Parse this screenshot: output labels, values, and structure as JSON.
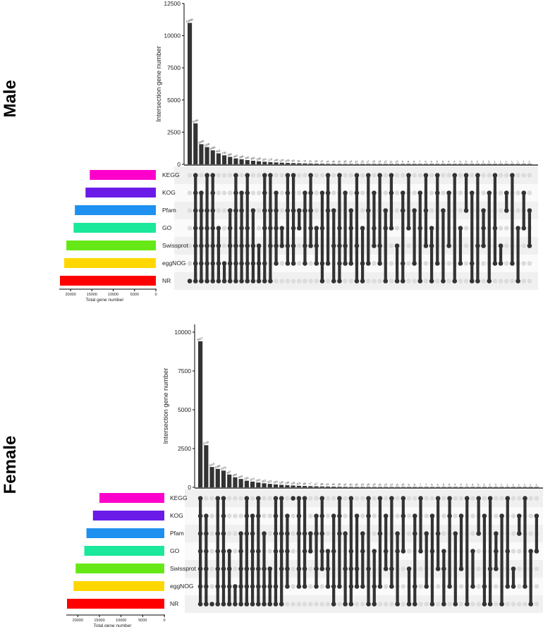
{
  "chart_data": [
    {
      "type": "bar",
      "title": "Male",
      "ylabel": "Intersection gene number",
      "xlabel": "Total gene number",
      "ylim": [
        0,
        12500
      ],
      "y_ticks": [
        0,
        2500,
        5000,
        7500,
        10000,
        12500
      ],
      "set_x_ticks": [
        20000,
        15000,
        10000,
        5000,
        0
      ],
      "set_xlim": [
        0,
        22000
      ],
      "sets": [
        {
          "name": "KEGG",
          "size": 15500,
          "color": "#FF00CC"
        },
        {
          "name": "KOG",
          "size": 16500,
          "color": "#6A1BE8"
        },
        {
          "name": "Pfam",
          "size": 19000,
          "color": "#1E90F0"
        },
        {
          "name": "GO",
          "size": 19300,
          "color": "#1AE89A"
        },
        {
          "name": "Swissprot",
          "size": 21000,
          "color": "#66E817"
        },
        {
          "name": "eggNOG",
          "size": 21500,
          "color": "#FFD700"
        },
        {
          "name": "NR",
          "size": 22500,
          "color": "#FF0000"
        }
      ],
      "values": [
        10995,
        3185,
        1568,
        1339,
        1086,
        852,
        700,
        580,
        460,
        399,
        330,
        280,
        238,
        201,
        172,
        146,
        124,
        106,
        93,
        81,
        70,
        61,
        53,
        47,
        41,
        36,
        32,
        28,
        24,
        21,
        19,
        17,
        15,
        13,
        12,
        11,
        10,
        9,
        8,
        8,
        7,
        6,
        6,
        5,
        5,
        4,
        4,
        3,
        3,
        3,
        2,
        2,
        2,
        1,
        1,
        1,
        1,
        1,
        1,
        1
      ],
      "value_labels": [
        "10995",
        "3185",
        "1568",
        "1339",
        "1086",
        "852",
        "700",
        "580",
        "460",
        "399",
        "330",
        "280",
        "238",
        "201",
        "172",
        "146",
        "124",
        "106",
        "93",
        "81",
        "70",
        "61",
        "53",
        "47",
        "41",
        "36",
        "32",
        "28",
        "24",
        "21",
        "19",
        "17",
        "15",
        "13",
        "12",
        "11",
        "10",
        "9",
        "8",
        "8",
        "7",
        "6",
        "6",
        "5",
        "5",
        "4",
        "4",
        "3",
        "3",
        "3",
        "2",
        "2",
        "2",
        "1",
        "1",
        "1",
        "1",
        "1",
        "1",
        "1"
      ],
      "intersections": [
        [
          6
        ],
        [
          0,
          1,
          2,
          3,
          4,
          5,
          6
        ],
        [
          1,
          2,
          3,
          4,
          5,
          6
        ],
        [
          0,
          2,
          3,
          4,
          5,
          6
        ],
        [
          0,
          1,
          2,
          3,
          4,
          5,
          6
        ],
        [
          3,
          4,
          5,
          6
        ],
        [
          5,
          6
        ],
        [
          2,
          3,
          4,
          5,
          6
        ],
        [
          0,
          1,
          2,
          4,
          5,
          6
        ],
        [
          1,
          2,
          3,
          4,
          5,
          6
        ],
        [
          0,
          1,
          3,
          4,
          5,
          6
        ],
        [
          2,
          4,
          5,
          6
        ],
        [
          4,
          5,
          6
        ],
        [
          0,
          1,
          2,
          3,
          5,
          6
        ],
        [
          0,
          2,
          3,
          4,
          6
        ],
        [
          1,
          2,
          3,
          4,
          5
        ],
        [
          3,
          4
        ],
        [
          0,
          1,
          2,
          4,
          5
        ],
        [
          0,
          2,
          3,
          4,
          5
        ],
        [
          2,
          3
        ],
        [
          1,
          2,
          4,
          5
        ],
        [
          0,
          1,
          2,
          3,
          4
        ],
        [
          3,
          4,
          5
        ],
        [
          1,
          3,
          5,
          6
        ],
        [
          0,
          1,
          2,
          5
        ],
        [
          2,
          4,
          6
        ],
        [
          0,
          3,
          4,
          5,
          6
        ],
        [
          1,
          4,
          5
        ],
        [
          2,
          3,
          5
        ],
        [
          0,
          1,
          4,
          6
        ],
        [
          3,
          5,
          6
        ],
        [
          0,
          2,
          5
        ],
        [
          1,
          3,
          4
        ],
        [
          0,
          4,
          5
        ],
        [
          2,
          3,
          6
        ],
        [
          0,
          1,
          3
        ],
        [
          4,
          6
        ],
        [
          1,
          2,
          5,
          6
        ],
        [
          0,
          3
        ],
        [
          2,
          5
        ],
        [
          1,
          3,
          6
        ],
        [
          0,
          2,
          4
        ],
        [
          3,
          4,
          6
        ],
        [
          0,
          1,
          5
        ],
        [
          2,
          6
        ],
        [
          1,
          4
        ],
        [
          0,
          6
        ],
        [
          3,
          5
        ],
        [
          0,
          2
        ],
        [
          1,
          5,
          6
        ],
        [
          0,
          4,
          6
        ],
        [
          2,
          3,
          4
        ],
        [
          1,
          6
        ],
        [
          0,
          3,
          5
        ],
        [
          4,
          5
        ],
        [
          1,
          2
        ],
        [
          0,
          5
        ],
        [
          3,
          6
        ],
        [
          1,
          3
        ],
        [
          2,
          4
        ]
      ]
    },
    {
      "type": "bar",
      "title": "Female",
      "ylabel": "Intersection gene number",
      "xlabel": "Total gene number",
      "ylim": [
        0,
        10500
      ],
      "y_ticks": [
        0,
        2500,
        5000,
        7500,
        10000
      ],
      "set_x_ticks": [
        20000,
        15000,
        10000,
        5000,
        0
      ],
      "set_xlim": [
        0,
        22000
      ],
      "sets": [
        {
          "name": "KEGG",
          "size": 15000,
          "color": "#FF00CC"
        },
        {
          "name": "KOG",
          "size": 16500,
          "color": "#6A1BE8"
        },
        {
          "name": "Pfam",
          "size": 18000,
          "color": "#1E90F0"
        },
        {
          "name": "GO",
          "size": 18500,
          "color": "#1AE89A"
        },
        {
          "name": "Swissprot",
          "size": 20500,
          "color": "#66E817"
        },
        {
          "name": "eggNOG",
          "size": 21000,
          "color": "#FFD700"
        },
        {
          "name": "NR",
          "size": 22500,
          "color": "#FF0000"
        }
      ],
      "values": [
        9417,
        2716,
        1313,
        1188,
        1079,
        827,
        650,
        540,
        430,
        370,
        310,
        262,
        222,
        190,
        163,
        139,
        118,
        101,
        88,
        77,
        67,
        58,
        51,
        45,
        39,
        34,
        30,
        26,
        23,
        20,
        18,
        16,
        14,
        12,
        11,
        10,
        9,
        8,
        7,
        7,
        6,
        6,
        5,
        5,
        4,
        4,
        3,
        3,
        3,
        2,
        2,
        2,
        1,
        1,
        1,
        1,
        1,
        1,
        1
      ],
      "value_labels": [
        "9417",
        "2716",
        "1313",
        "1188",
        "1079",
        "827",
        "650",
        "540",
        "430",
        "370",
        "310",
        "262",
        "222",
        "190",
        "163",
        "139",
        "118",
        "101",
        "88",
        "77",
        "67",
        "58",
        "51",
        "45",
        "39",
        "34",
        "30",
        "26",
        "23",
        "20",
        "18",
        "16",
        "14",
        "12",
        "11",
        "10",
        "9",
        "8",
        "7",
        "7",
        "6",
        "6",
        "5",
        "5",
        "4",
        "4",
        "3",
        "3",
        "3",
        "2",
        "2",
        "2",
        "1",
        "1",
        "1",
        "1",
        "1",
        "1",
        "1"
      ],
      "intersections": [
        [
          0,
          1,
          2,
          3,
          4,
          5,
          6
        ],
        [
          1,
          2,
          3,
          4,
          5,
          6
        ],
        [
          6
        ],
        [
          0,
          2,
          3,
          4,
          5,
          6
        ],
        [
          0,
          1,
          2,
          3,
          4,
          5,
          6
        ],
        [
          3,
          4,
          5,
          6
        ],
        [
          5,
          6
        ],
        [
          2,
          3,
          4,
          5,
          6
        ],
        [
          0,
          1,
          2,
          4,
          5,
          6
        ],
        [
          1,
          2,
          3,
          4,
          5,
          6
        ],
        [
          0,
          1,
          3,
          4,
          5,
          6
        ],
        [
          2,
          4,
          5,
          6
        ],
        [
          4,
          5,
          6
        ],
        [
          0,
          1,
          2,
          3,
          5,
          6
        ],
        [
          0,
          2,
          3,
          4,
          6
        ],
        [
          1,
          2,
          3,
          4,
          5
        ],
        [
          0
        ],
        [
          0,
          1,
          2,
          4,
          5
        ],
        [
          0,
          2,
          3,
          4,
          5
        ],
        [
          2,
          3
        ],
        [
          1,
          2,
          4,
          5
        ],
        [
          0,
          1,
          2,
          3,
          4
        ],
        [
          3,
          4,
          5
        ],
        [
          1,
          3,
          5,
          6
        ],
        [
          0,
          1,
          2,
          5
        ],
        [
          2,
          4,
          6
        ],
        [
          0,
          3,
          4,
          5,
          6
        ],
        [
          1,
          4,
          5
        ],
        [
          2,
          3,
          5
        ],
        [
          0,
          1,
          4,
          6
        ],
        [
          3,
          5,
          6
        ],
        [
          0,
          2,
          5
        ],
        [
          1,
          3,
          4
        ],
        [
          0,
          4,
          5
        ],
        [
          2,
          3,
          6
        ],
        [
          0,
          1,
          3
        ],
        [
          4,
          6
        ],
        [
          1,
          2,
          5,
          6
        ],
        [
          0,
          3
        ],
        [
          2,
          5
        ],
        [
          1,
          3,
          6
        ],
        [
          0,
          2,
          4
        ],
        [
          3,
          4,
          6
        ],
        [
          0,
          1,
          5
        ],
        [
          2,
          6
        ],
        [
          1,
          4
        ],
        [
          0,
          6
        ],
        [
          3,
          5
        ],
        [
          0,
          2
        ],
        [
          1,
          5,
          6
        ],
        [
          0,
          4,
          6
        ],
        [
          2,
          3,
          4
        ],
        [
          1,
          6
        ],
        [
          0,
          3,
          5
        ],
        [
          4,
          5
        ],
        [
          1,
          2
        ],
        [
          0,
          5
        ],
        [
          3,
          6
        ],
        [
          1,
          3
        ]
      ]
    }
  ]
}
